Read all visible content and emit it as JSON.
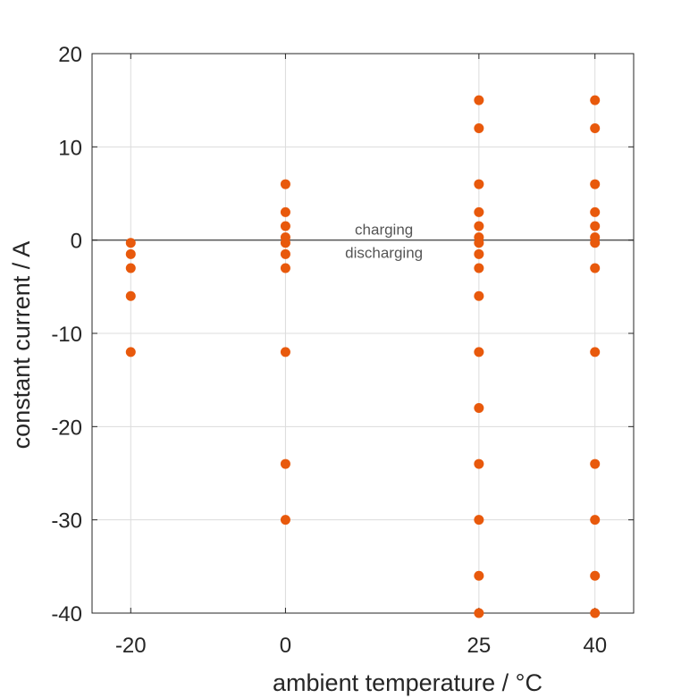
{
  "chart_data": {
    "type": "scatter",
    "xlabel": "ambient temperature / °C",
    "ylabel": "constant current / A",
    "xlim": [
      -25,
      45
    ],
    "ylim": [
      -40,
      20
    ],
    "x_ticks": [
      -20,
      0,
      25,
      40
    ],
    "y_ticks": [
      20,
      10,
      0,
      -10,
      -20,
      -30,
      -40
    ],
    "grid": true,
    "marker_color": "#e8590c",
    "zero_line_color": "#555555",
    "annotations": {
      "above_zero": "charging",
      "below_zero": "discharging"
    },
    "points": [
      {
        "x": -20,
        "y": -0.3
      },
      {
        "x": -20,
        "y": -1.5
      },
      {
        "x": -20,
        "y": -3
      },
      {
        "x": -20,
        "y": -6
      },
      {
        "x": -20,
        "y": -12
      },
      {
        "x": 0,
        "y": 6
      },
      {
        "x": 0,
        "y": 3
      },
      {
        "x": 0,
        "y": 1.5
      },
      {
        "x": 0,
        "y": 0.3
      },
      {
        "x": 0,
        "y": -0.3
      },
      {
        "x": 0,
        "y": -1.5
      },
      {
        "x": 0,
        "y": -3
      },
      {
        "x": 0,
        "y": -12
      },
      {
        "x": 0,
        "y": -24
      },
      {
        "x": 0,
        "y": -30
      },
      {
        "x": 25,
        "y": 15
      },
      {
        "x": 25,
        "y": 12
      },
      {
        "x": 25,
        "y": 6
      },
      {
        "x": 25,
        "y": 3
      },
      {
        "x": 25,
        "y": 1.5
      },
      {
        "x": 25,
        "y": 0.3
      },
      {
        "x": 25,
        "y": -0.3
      },
      {
        "x": 25,
        "y": -1.5
      },
      {
        "x": 25,
        "y": -3
      },
      {
        "x": 25,
        "y": -6
      },
      {
        "x": 25,
        "y": -12
      },
      {
        "x": 25,
        "y": -18
      },
      {
        "x": 25,
        "y": -24
      },
      {
        "x": 25,
        "y": -30
      },
      {
        "x": 25,
        "y": -36
      },
      {
        "x": 25,
        "y": -40
      },
      {
        "x": 40,
        "y": 15
      },
      {
        "x": 40,
        "y": 12
      },
      {
        "x": 40,
        "y": 6
      },
      {
        "x": 40,
        "y": 3
      },
      {
        "x": 40,
        "y": 1.5
      },
      {
        "x": 40,
        "y": 0.3
      },
      {
        "x": 40,
        "y": -0.3
      },
      {
        "x": 40,
        "y": -3
      },
      {
        "x": 40,
        "y": -12
      },
      {
        "x": 40,
        "y": -24
      },
      {
        "x": 40,
        "y": -30
      },
      {
        "x": 40,
        "y": -36
      },
      {
        "x": 40,
        "y": -40
      }
    ]
  }
}
